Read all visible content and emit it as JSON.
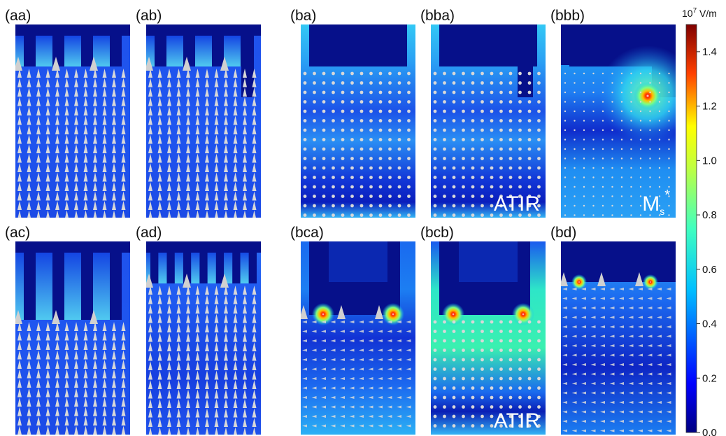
{
  "panels": [
    {
      "label": "(aa)",
      "field": "a",
      "arrows": "up",
      "insert": "stubs",
      "overlay": ""
    },
    {
      "label": "(ab)",
      "field": "a",
      "arrows": "up",
      "insert": "stubs_long_right",
      "overlay": ""
    },
    {
      "label": "(ba)",
      "field": "b",
      "arrows": "dots",
      "insert": "block",
      "overlay": ""
    },
    {
      "label": "(bba)",
      "field": "b",
      "arrows": "dots",
      "insert": "block_notch",
      "overlay": "ATIR"
    },
    {
      "label": "(bbb)",
      "field": "hot_right",
      "arrows": "dots_small",
      "insert": "block_notch_deep",
      "overlay": "M",
      "overlay_sub": "s",
      "overlay_sup": "*"
    },
    {
      "label": "(ac)",
      "field": "a",
      "arrows": "up",
      "insert": "stubs_deep",
      "overlay": ""
    },
    {
      "label": "(ad)",
      "field": "a_bright",
      "arrows": "up",
      "insert": "stubs_fine",
      "overlay": ""
    },
    {
      "label": "(bca)",
      "field": "hot_pair",
      "arrows": "mixed",
      "insert": "block_deep",
      "overlay": ""
    },
    {
      "label": "(bcb)",
      "field": "green",
      "arrows": "dots",
      "insert": "block_deep",
      "overlay": "ATIR"
    },
    {
      "label": "(bd)",
      "field": "hot_pair_small",
      "arrows": "mixed",
      "insert": "block_wide",
      "overlay": ""
    }
  ],
  "colorbar": {
    "unit_base": "10",
    "unit_exp": "7",
    "unit_text": "V/m",
    "ticks": [
      "1.4",
      "1.2",
      "1.0",
      "0.8",
      "0.6",
      "0.4",
      "0.2",
      "0.0"
    ],
    "tick_values": [
      1.4,
      1.2,
      1.0,
      0.8,
      0.6,
      0.4,
      0.2,
      0.0
    ],
    "range": [
      0.0,
      1.5
    ],
    "colormap": "jet"
  }
}
